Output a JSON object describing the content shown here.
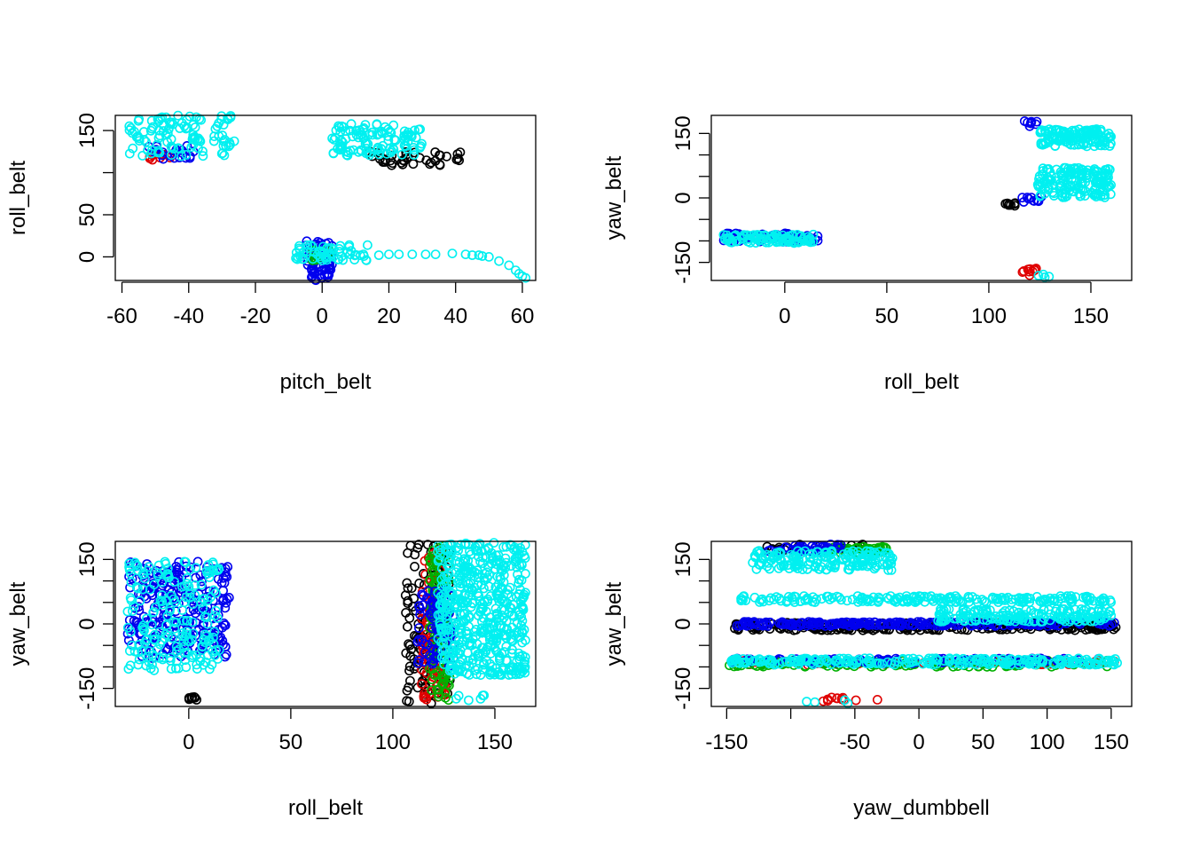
{
  "figure": {
    "background": "#ffffff",
    "class_colors": [
      "#000000",
      "#df0000",
      "#00b000",
      "#0000ee",
      "#00f0f0"
    ]
  },
  "chart_data": [
    {
      "type": "scatter",
      "xlabel": "pitch_belt",
      "ylabel": "roll_belt",
      "xlim": [
        -62,
        64
      ],
      "ylim": [
        -28,
        168
      ],
      "xticks": [
        -60,
        -40,
        -20,
        0,
        20,
        40,
        60
      ],
      "xtick_labels": [
        "-60",
        "-40",
        "-20",
        "0",
        "20",
        "40",
        "60"
      ],
      "yticks": [
        0,
        50,
        150
      ],
      "ytick_labels": [
        "0",
        "50",
        "150"
      ],
      "yminor": [
        100
      ],
      "clusters": [
        {
          "color_index": 0,
          "x": [
            14,
            42
          ],
          "y": [
            108,
            125
          ],
          "n": 40
        },
        {
          "color_index": 1,
          "x": [
            -53,
            -45
          ],
          "y": [
            113,
            125
          ],
          "n": 10
        },
        {
          "color_index": 3,
          "x": [
            -52,
            -38
          ],
          "y": [
            116,
            132
          ],
          "n": 24
        },
        {
          "color_index": 3,
          "x": [
            -5,
            3
          ],
          "y": [
            -30,
            20
          ],
          "n": 60
        },
        {
          "color_index": 2,
          "x": [
            -3,
            3
          ],
          "y": [
            -5,
            10
          ],
          "n": 10
        },
        {
          "color_index": 4,
          "x": [
            -58,
            -26
          ],
          "y": [
            118,
            168
          ],
          "n": 110
        },
        {
          "color_index": 4,
          "x": [
            3,
            30
          ],
          "y": [
            120,
            158
          ],
          "n": 110
        },
        {
          "color_index": 4,
          "x": [
            -8,
            14
          ],
          "y": [
            -5,
            14
          ],
          "n": 60
        }
      ],
      "points": [
        {
          "color_index": 4,
          "values": [
            [
              17,
              2
            ],
            [
              20,
              3
            ],
            [
              23,
              3
            ],
            [
              27,
              3
            ],
            [
              31,
              3
            ],
            [
              34,
              3
            ],
            [
              39,
              4
            ],
            [
              43,
              3
            ],
            [
              45,
              2
            ],
            [
              47,
              2
            ],
            [
              48,
              1
            ],
            [
              50,
              0
            ],
            [
              53,
              -5
            ],
            [
              56,
              -10
            ],
            [
              58,
              -16
            ],
            [
              59,
              -20
            ],
            [
              60,
              -23
            ],
            [
              61,
              -25
            ]
          ]
        }
      ]
    },
    {
      "type": "scatter",
      "xlabel": "roll_belt",
      "ylabel": "yaw_belt",
      "xlim": [
        -36,
        170
      ],
      "ylim": [
        -192,
        192
      ],
      "xticks": [
        0,
        50,
        100,
        150
      ],
      "xtick_labels": [
        "0",
        "50",
        "100",
        "150"
      ],
      "yticks": [
        -150,
        0,
        150
      ],
      "ytick_labels": [
        "-150",
        "0",
        "150"
      ],
      "yminor": [
        -100,
        -50,
        50,
        100
      ],
      "clusters": [
        {
          "color_index": 0,
          "x": [
            108,
            113
          ],
          "y": [
            -22,
            -12
          ],
          "n": 8
        },
        {
          "color_index": 1,
          "x": [
            115,
            126
          ],
          "y": [
            -182,
            -162
          ],
          "n": 10
        },
        {
          "color_index": 3,
          "x": [
            -30,
            18
          ],
          "y": [
            -102,
            -82
          ],
          "n": 70
        },
        {
          "color_index": 3,
          "x": [
            116,
            126
          ],
          "y": [
            -10,
            5
          ],
          "n": 10
        },
        {
          "color_index": 3,
          "x": [
            117,
            124
          ],
          "y": [
            165,
            180
          ],
          "n": 8
        },
        {
          "color_index": 4,
          "x": [
            -30,
            14
          ],
          "y": [
            -105,
            -85
          ],
          "n": 100
        },
        {
          "color_index": 4,
          "x": [
            124,
            160
          ],
          "y": [
            0,
            70
          ],
          "n": 160
        },
        {
          "color_index": 4,
          "x": [
            125,
            160
          ],
          "y": [
            120,
            160
          ],
          "n": 120
        },
        {
          "color_index": 4,
          "x": [
            122,
            130
          ],
          "y": [
            -185,
            -170
          ],
          "n": 4
        }
      ],
      "points": []
    },
    {
      "type": "scatter",
      "xlabel": "roll_belt",
      "ylabel": "yaw_belt",
      "xlim": [
        -36,
        170
      ],
      "ylim": [
        -192,
        192
      ],
      "xticks": [
        0,
        50,
        100,
        150
      ],
      "xtick_labels": [
        "0",
        "50",
        "100",
        "150"
      ],
      "yticks": [
        -150,
        0,
        150
      ],
      "ytick_labels": [
        "-150",
        "0",
        "150"
      ],
      "yminor": [
        -100,
        -50,
        50,
        100
      ],
      "clusters": [
        {
          "color_index": 0,
          "x": [
            106,
            128
          ],
          "y": [
            -185,
            185
          ],
          "n": 120
        },
        {
          "color_index": 0,
          "x": [
            0,
            4
          ],
          "y": [
            -185,
            -165
          ],
          "n": 8
        },
        {
          "color_index": 1,
          "x": [
            114,
            126
          ],
          "y": [
            -180,
            180
          ],
          "n": 100
        },
        {
          "color_index": 2,
          "x": [
            118,
            128
          ],
          "y": [
            -180,
            185
          ],
          "n": 110
        },
        {
          "color_index": 3,
          "x": [
            -30,
            20
          ],
          "y": [
            -80,
            145
          ],
          "n": 260
        },
        {
          "color_index": 3,
          "x": [
            112,
            130
          ],
          "y": [
            -100,
            80
          ],
          "n": 90
        },
        {
          "color_index": 4,
          "x": [
            -30,
            15
          ],
          "y": [
            -110,
            145
          ],
          "n": 200
        },
        {
          "color_index": 4,
          "x": [
            122,
            165
          ],
          "y": [
            -120,
            190
          ],
          "n": 520
        },
        {
          "color_index": 4,
          "x": [
            130,
            145
          ],
          "y": [
            -180,
            -165
          ],
          "n": 6
        }
      ],
      "points": []
    },
    {
      "type": "scatter",
      "xlabel": "yaw_dumbbell",
      "ylabel": "yaw_belt",
      "xlim": [
        -162,
        166
      ],
      "ylim": [
        -192,
        192
      ],
      "xticks": [
        -150,
        -50,
        0,
        50,
        100,
        150
      ],
      "xtick_labels": [
        "-150",
        "-50",
        "0",
        "50",
        "100",
        "150"
      ],
      "xminor": [
        -100
      ],
      "yticks": [
        -150,
        0,
        150
      ],
      "ytick_labels": [
        "-150",
        "0",
        "150"
      ],
      "yminor": [
        -100,
        -50,
        50,
        100
      ],
      "clusters": [
        {
          "color_index": 0,
          "x": [
            -145,
            155
          ],
          "y": [
            -15,
            3
          ],
          "n": 260
        },
        {
          "color_index": 0,
          "x": [
            -120,
            -40
          ],
          "y": [
            170,
            185
          ],
          "n": 20
        },
        {
          "color_index": 1,
          "x": [
            -75,
            -30
          ],
          "y": [
            -180,
            -170
          ],
          "n": 12
        },
        {
          "color_index": 1,
          "x": [
            -150,
            155
          ],
          "y": [
            -95,
            -85
          ],
          "n": 60
        },
        {
          "color_index": 2,
          "x": [
            -150,
            150
          ],
          "y": [
            -100,
            -85
          ],
          "n": 120
        },
        {
          "color_index": 2,
          "x": [
            -70,
            -25
          ],
          "y": [
            165,
            180
          ],
          "n": 40
        },
        {
          "color_index": 3,
          "x": [
            -145,
            155
          ],
          "y": [
            -5,
            5
          ],
          "n": 230
        },
        {
          "color_index": 3,
          "x": [
            -150,
            140
          ],
          "y": [
            -92,
            -80
          ],
          "n": 90
        },
        {
          "color_index": 3,
          "x": [
            -120,
            -60
          ],
          "y": [
            165,
            185
          ],
          "n": 40
        },
        {
          "color_index": 4,
          "x": [
            -130,
            -20
          ],
          "y": [
            125,
            170
          ],
          "n": 170
        },
        {
          "color_index": 4,
          "x": [
            -140,
            150
          ],
          "y": [
            50,
            65
          ],
          "n": 200
        },
        {
          "color_index": 4,
          "x": [
            15,
            150
          ],
          "y": [
            5,
            35
          ],
          "n": 170
        },
        {
          "color_index": 4,
          "x": [
            -150,
            155
          ],
          "y": [
            -95,
            -80
          ],
          "n": 260
        },
        {
          "color_index": 4,
          "x": [
            -90,
            -50
          ],
          "y": [
            -185,
            -175
          ],
          "n": 4
        }
      ],
      "points": []
    }
  ]
}
